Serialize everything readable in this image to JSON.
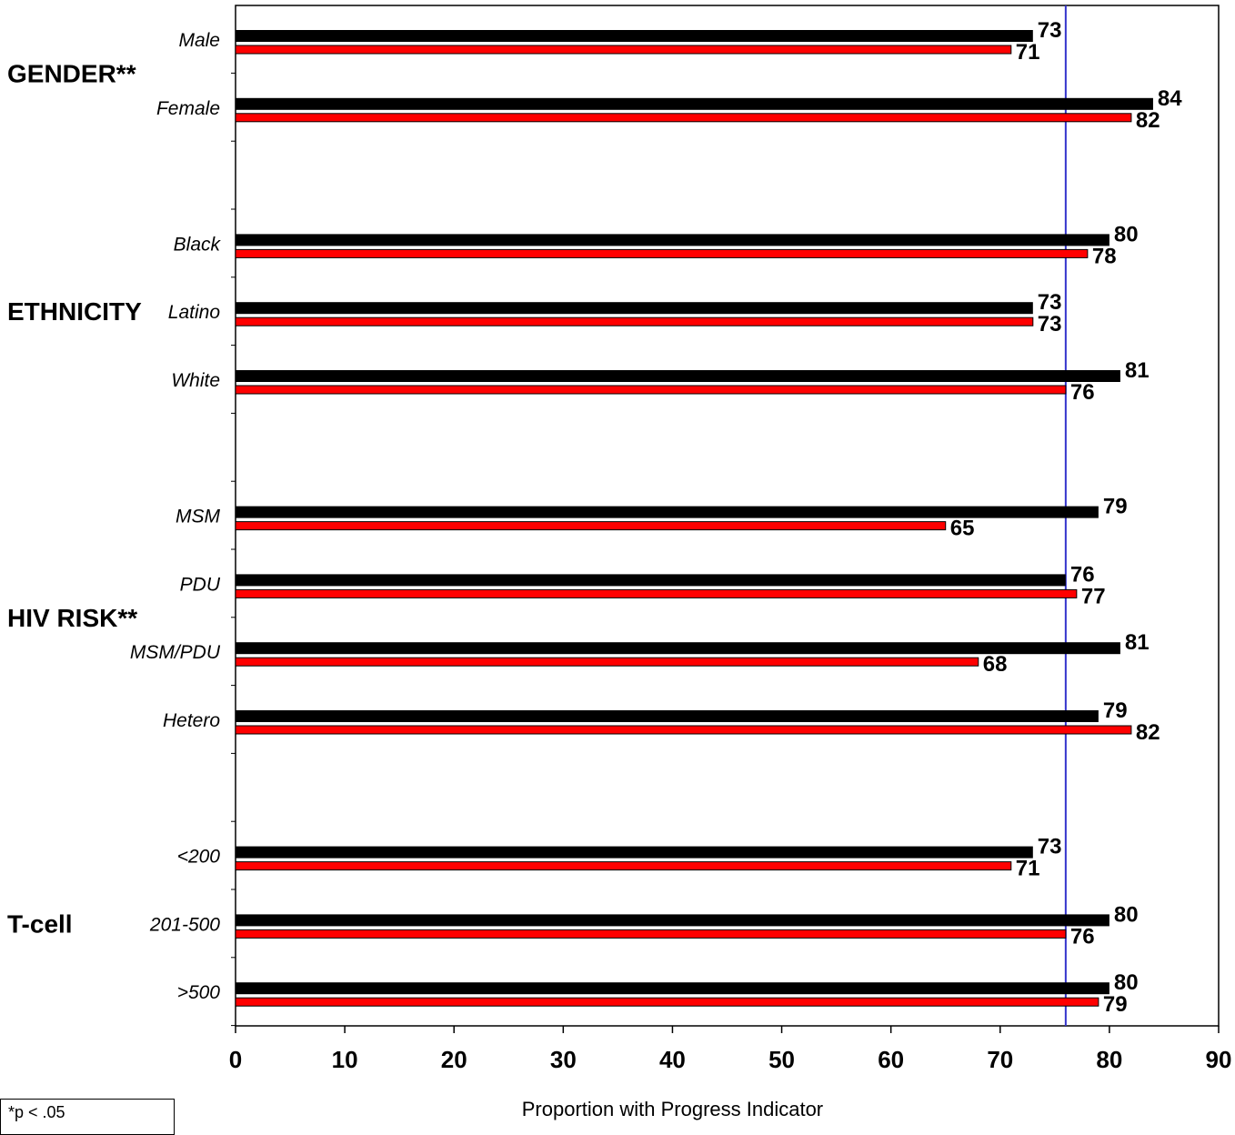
{
  "chart_data": {
    "type": "bar",
    "orientation": "horizontal",
    "xlabel": "Proportion with Progress Indicator",
    "xlim": [
      0,
      90
    ],
    "xticks": [
      0,
      10,
      20,
      30,
      40,
      50,
      60,
      70,
      80,
      90
    ],
    "reference_line_x": 76,
    "colors": {
      "series1": "#000000",
      "series2": "#ff0000",
      "reference_line": "#3333cc"
    },
    "groups": [
      {
        "label": "GENDER**",
        "categories": [
          "Male",
          "Female"
        ]
      },
      {
        "label": "ETHNICITY",
        "categories": [
          "Black",
          "Latino",
          "White"
        ]
      },
      {
        "label": "HIV RISK**",
        "categories": [
          "MSM",
          "PDU",
          "MSM/PDU",
          "Hetero"
        ]
      },
      {
        "label": "T-cell",
        "categories": [
          "<200",
          "201-500",
          ">500"
        ]
      }
    ],
    "series": [
      {
        "values": [
          73,
          84,
          80,
          73,
          81,
          79,
          76,
          81,
          79,
          73,
          80,
          80
        ]
      },
      {
        "values": [
          71,
          82,
          78,
          73,
          76,
          65,
          77,
          68,
          82,
          71,
          76,
          79
        ]
      }
    ]
  },
  "footnote": "*p < .05"
}
